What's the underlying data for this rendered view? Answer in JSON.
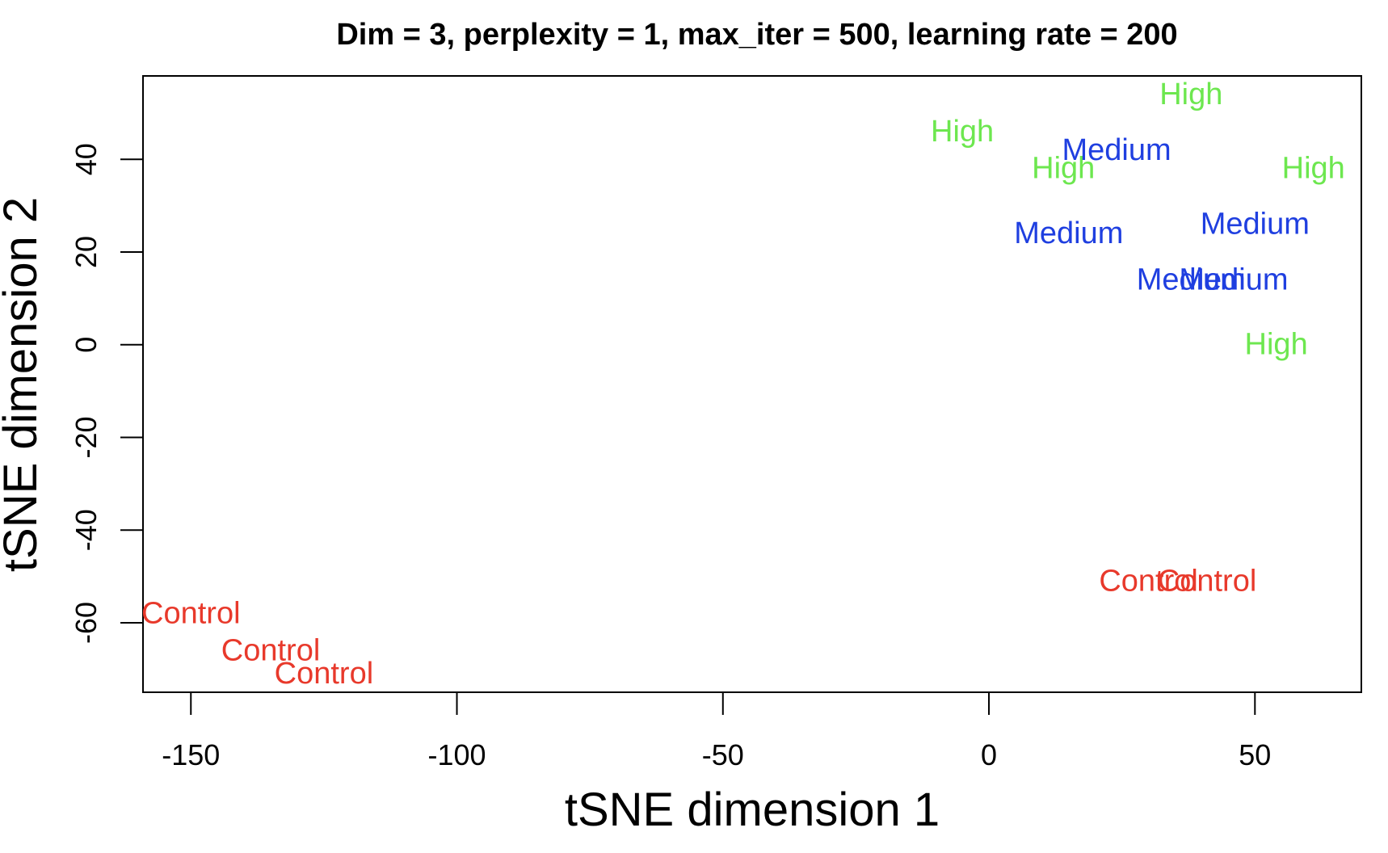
{
  "chart_data": {
    "type": "scatter",
    "title": "Dim = 3, perplexity = 1, max_iter = 500, learning rate = 200",
    "xlabel": "tSNE dimension 1",
    "ylabel": "tSNE dimension 2",
    "xlim": [
      -159,
      70
    ],
    "ylim": [
      -75,
      58
    ],
    "xticks": [
      -150,
      -100,
      -50,
      0,
      50
    ],
    "yticks": [
      -60,
      -40,
      -20,
      0,
      20,
      40
    ],
    "grid": false,
    "legend": "none",
    "marker": "text",
    "colors": {
      "Control": "#e8392b",
      "Medium": "#1f3fe0",
      "High": "#6de74f"
    },
    "points": [
      {
        "label": "Control",
        "x": -150,
        "y": -58
      },
      {
        "label": "Control",
        "x": -135,
        "y": -66
      },
      {
        "label": "Control",
        "x": -125,
        "y": -71
      },
      {
        "label": "Control",
        "x": 30,
        "y": -51
      },
      {
        "label": "Control",
        "x": 41,
        "y": -51
      },
      {
        "label": "High",
        "x": -5,
        "y": 46
      },
      {
        "label": "High",
        "x": 14,
        "y": 38
      },
      {
        "label": "High",
        "x": 38,
        "y": 54
      },
      {
        "label": "High",
        "x": 61,
        "y": 38
      },
      {
        "label": "High",
        "x": 54,
        "y": 0
      },
      {
        "label": "Medium",
        "x": 24,
        "y": 42
      },
      {
        "label": "Medium",
        "x": 15,
        "y": 24
      },
      {
        "label": "Medium",
        "x": 50,
        "y": 26
      },
      {
        "label": "Medium",
        "x": 38,
        "y": 14
      },
      {
        "label": "Medium",
        "x": 46,
        "y": 14
      }
    ]
  }
}
